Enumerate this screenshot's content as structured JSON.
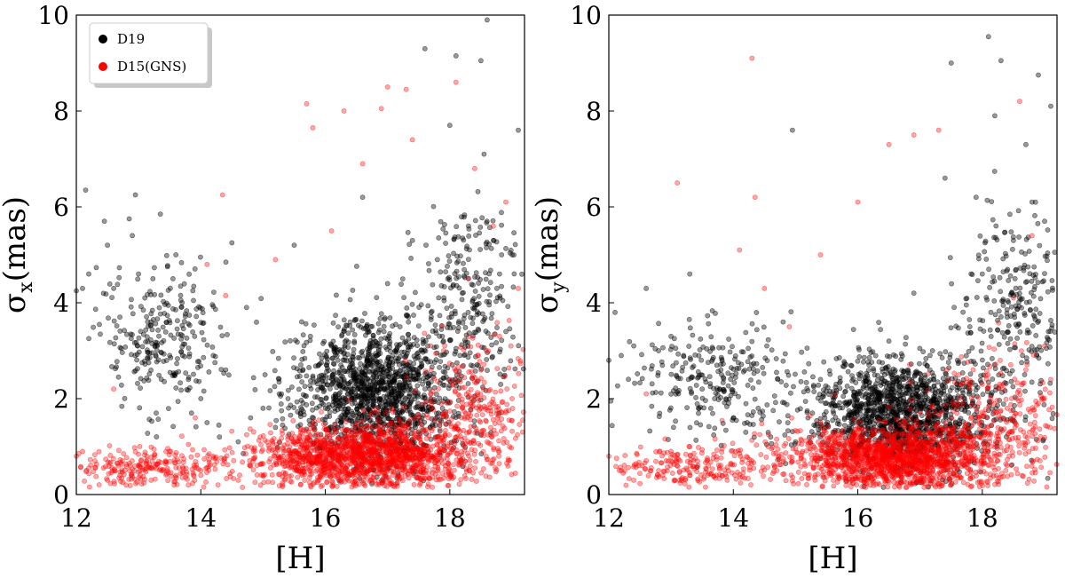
{
  "chart_data": [
    {
      "type": "scatter",
      "title": "",
      "xlabel": "[H]",
      "ylabel_symbol": "σ",
      "ylabel_sub": "x",
      "ylabel_unit": "(mas)",
      "xlim": [
        12,
        19.2
      ],
      "ylim": [
        0,
        10
      ],
      "xticks": [
        12,
        14,
        16,
        18
      ],
      "yticks": [
        0,
        2,
        4,
        6,
        8,
        10
      ],
      "grid": false,
      "legend": {
        "placement": "top-left",
        "entries": [
          "D19",
          "D15(GNS)"
        ]
      },
      "series": [
        {
          "name": "D19",
          "color": "#000000",
          "samples": [
            [
              12.0,
              4.25
            ],
            [
              12.1,
              4.3
            ],
            [
              12.15,
              6.35
            ],
            [
              12.2,
              4.6
            ],
            [
              12.45,
              5.7
            ],
            [
              12.5,
              5.2
            ],
            [
              12.6,
              4.3
            ],
            [
              12.7,
              3.7
            ],
            [
              12.85,
              5.75
            ],
            [
              12.9,
              5.4
            ],
            [
              12.95,
              6.25
            ],
            [
              13.0,
              4.6
            ],
            [
              13.1,
              4.1
            ],
            [
              13.2,
              3.6
            ],
            [
              13.3,
              3.1
            ],
            [
              13.35,
              5.85
            ],
            [
              13.5,
              2.9
            ],
            [
              13.6,
              5.0
            ],
            [
              13.7,
              4.0
            ],
            [
              13.8,
              2.4
            ],
            [
              13.85,
              1.7
            ],
            [
              13.9,
              3.3
            ],
            [
              14.0,
              2.0
            ],
            [
              14.1,
              1.5
            ],
            [
              14.2,
              2.9
            ],
            [
              14.3,
              1.2
            ],
            [
              14.4,
              2.6
            ],
            [
              14.5,
              5.25
            ],
            [
              14.6,
              1.1
            ],
            [
              14.8,
              1.6
            ],
            [
              15.0,
              1.8
            ],
            [
              15.2,
              1.4
            ],
            [
              15.4,
              2.0
            ],
            [
              15.5,
              5.2
            ],
            [
              15.6,
              1.7
            ],
            [
              15.8,
              1.5
            ],
            [
              15.9,
              2.4
            ],
            [
              16.0,
              1.8
            ],
            [
              16.1,
              1.3
            ],
            [
              16.2,
              2.8
            ],
            [
              16.3,
              1.9
            ],
            [
              16.4,
              3.6
            ],
            [
              16.5,
              2.3
            ],
            [
              16.6,
              6.2
            ],
            [
              16.7,
              2.0
            ],
            [
              16.8,
              3.1
            ],
            [
              16.9,
              2.6
            ],
            [
              17.0,
              4.4
            ],
            [
              17.1,
              2.2
            ],
            [
              17.2,
              3.5
            ],
            [
              17.3,
              2.9
            ],
            [
              17.4,
              5.3
            ],
            [
              17.5,
              2.5
            ],
            [
              17.6,
              9.3
            ],
            [
              17.7,
              3.8
            ],
            [
              17.8,
              4.9
            ],
            [
              17.9,
              3.2
            ],
            [
              18.0,
              7.7
            ],
            [
              18.1,
              9.15
            ],
            [
              18.2,
              4.2
            ],
            [
              18.3,
              5.6
            ],
            [
              18.4,
              3.9
            ],
            [
              18.5,
              9.05
            ],
            [
              18.55,
              7.1
            ],
            [
              18.6,
              9.9
            ],
            [
              18.7,
              5.3
            ],
            [
              18.8,
              4.6
            ],
            [
              18.9,
              3.4
            ],
            [
              19.0,
              5.0
            ],
            [
              19.1,
              7.6
            ]
          ]
        },
        {
          "name": "D15(GNS)",
          "color": "#ff0000",
          "samples": [
            [
              12.0,
              0.8
            ],
            [
              12.1,
              0.9
            ],
            [
              12.2,
              0.55
            ],
            [
              12.3,
              0.7
            ],
            [
              12.5,
              0.3
            ],
            [
              12.6,
              2.2
            ],
            [
              12.7,
              0.4
            ],
            [
              12.8,
              0.2
            ],
            [
              13.0,
              0.6
            ],
            [
              13.2,
              0.3
            ],
            [
              13.4,
              0.5
            ],
            [
              13.6,
              0.4
            ],
            [
              13.8,
              0.2
            ],
            [
              14.0,
              0.5
            ],
            [
              14.1,
              4.8
            ],
            [
              14.35,
              6.25
            ],
            [
              14.4,
              4.15
            ],
            [
              14.6,
              0.3
            ],
            [
              14.8,
              0.6
            ],
            [
              15.0,
              0.4
            ],
            [
              15.2,
              4.9
            ],
            [
              15.4,
              0.8
            ],
            [
              15.6,
              0.5
            ],
            [
              15.7,
              8.15
            ],
            [
              15.8,
              7.65
            ],
            [
              15.9,
              0.3
            ],
            [
              16.0,
              0.7
            ],
            [
              16.1,
              5.5
            ],
            [
              16.2,
              0.4
            ],
            [
              16.3,
              8.0
            ],
            [
              16.4,
              0.9
            ],
            [
              16.5,
              0.6
            ],
            [
              16.6,
              6.9
            ],
            [
              16.7,
              1.1
            ],
            [
              16.8,
              0.5
            ],
            [
              16.9,
              8.05
            ],
            [
              17.0,
              8.5
            ],
            [
              17.1,
              1.3
            ],
            [
              17.2,
              0.8
            ],
            [
              17.3,
              8.45
            ],
            [
              17.4,
              7.4
            ],
            [
              17.5,
              1.6
            ],
            [
              17.6,
              0.9
            ],
            [
              17.7,
              2.1
            ],
            [
              17.8,
              1.2
            ],
            [
              17.9,
              3.0
            ],
            [
              18.0,
              2.4
            ],
            [
              18.1,
              8.6
            ],
            [
              18.2,
              1.8
            ],
            [
              18.3,
              4.5
            ],
            [
              18.4,
              6.8
            ],
            [
              18.5,
              2.6
            ],
            [
              18.6,
              1.1
            ],
            [
              18.7,
              5.6
            ],
            [
              18.8,
              3.3
            ],
            [
              18.9,
              6.1
            ],
            [
              19.0,
              2.0
            ],
            [
              19.1,
              4.3
            ]
          ]
        }
      ]
    },
    {
      "type": "scatter",
      "title": "",
      "xlabel": "[H]",
      "ylabel_symbol": "σ",
      "ylabel_sub": "y",
      "ylabel_unit": "(mas)",
      "xlim": [
        12,
        19.2
      ],
      "ylim": [
        0,
        10
      ],
      "xticks": [
        12,
        14,
        16,
        18
      ],
      "yticks": [
        0,
        2,
        4,
        6,
        8,
        10
      ],
      "grid": false,
      "series": [
        {
          "name": "D19",
          "color": "#000000",
          "samples": [
            [
              12.0,
              2.8
            ],
            [
              12.1,
              3.8
            ],
            [
              12.2,
              2.9
            ],
            [
              12.4,
              3.1
            ],
            [
              12.6,
              4.3
            ],
            [
              12.8,
              3.0
            ],
            [
              13.0,
              3.3
            ],
            [
              13.2,
              2.9
            ],
            [
              13.3,
              4.6
            ],
            [
              13.5,
              2.2
            ],
            [
              13.7,
              2.0
            ],
            [
              13.8,
              2.6
            ],
            [
              14.0,
              1.6
            ],
            [
              14.2,
              1.3
            ],
            [
              14.4,
              1.8
            ],
            [
              14.6,
              1.2
            ],
            [
              14.8,
              3.6
            ],
            [
              14.95,
              7.6
            ],
            [
              15.0,
              1.1
            ],
            [
              15.2,
              1.6
            ],
            [
              15.4,
              2.4
            ],
            [
              15.6,
              1.3
            ],
            [
              15.8,
              1.9
            ],
            [
              16.0,
              1.5
            ],
            [
              16.2,
              2.2
            ],
            [
              16.4,
              1.7
            ],
            [
              16.5,
              3.2
            ],
            [
              16.6,
              2.0
            ],
            [
              16.8,
              2.6
            ],
            [
              16.9,
              4.2
            ],
            [
              17.0,
              1.9
            ],
            [
              17.2,
              3.0
            ],
            [
              17.4,
              6.6
            ],
            [
              17.5,
              9.0
            ],
            [
              17.6,
              2.8
            ],
            [
              17.8,
              3.5
            ],
            [
              17.9,
              6.2
            ],
            [
              18.0,
              4.6
            ],
            [
              18.1,
              9.55
            ],
            [
              18.2,
              7.9
            ],
            [
              18.3,
              9.05
            ],
            [
              18.4,
              3.7
            ],
            [
              18.5,
              5.3
            ],
            [
              18.6,
              4.1
            ],
            [
              18.7,
              7.3
            ],
            [
              18.8,
              6.1
            ],
            [
              18.9,
              8.75
            ],
            [
              19.0,
              5.7
            ],
            [
              19.1,
              8.1
            ]
          ]
        },
        {
          "name": "D15(GNS)",
          "color": "#ff0000",
          "samples": [
            [
              12.0,
              0.8
            ],
            [
              12.2,
              0.5
            ],
            [
              12.4,
              0.3
            ],
            [
              12.6,
              2.1
            ],
            [
              12.8,
              0.5
            ],
            [
              13.0,
              0.9
            ],
            [
              13.1,
              6.5
            ],
            [
              13.3,
              0.4
            ],
            [
              13.6,
              0.6
            ],
            [
              13.9,
              0.3
            ],
            [
              14.1,
              5.1
            ],
            [
              14.3,
              9.1
            ],
            [
              14.35,
              6.2
            ],
            [
              14.5,
              4.3
            ],
            [
              14.7,
              0.5
            ],
            [
              14.9,
              3.5
            ],
            [
              15.2,
              0.4
            ],
            [
              15.4,
              5.0
            ],
            [
              15.6,
              0.9
            ],
            [
              15.8,
              0.6
            ],
            [
              16.0,
              6.1
            ],
            [
              16.2,
              1.0
            ],
            [
              16.4,
              0.4
            ],
            [
              16.5,
              7.3
            ],
            [
              16.6,
              1.3
            ],
            [
              16.8,
              0.7
            ],
            [
              16.9,
              7.5
            ],
            [
              17.0,
              1.7
            ],
            [
              17.2,
              1.1
            ],
            [
              17.3,
              7.6
            ],
            [
              17.4,
              0.6
            ],
            [
              17.6,
              1.9
            ],
            [
              17.8,
              1.2
            ],
            [
              18.0,
              2.3
            ],
            [
              18.2,
              0.8
            ],
            [
              18.4,
              1.8
            ],
            [
              18.5,
              4.1
            ],
            [
              18.6,
              8.2
            ],
            [
              18.7,
              2.6
            ],
            [
              18.8,
              5.4
            ],
            [
              18.9,
              1.9
            ],
            [
              19.0,
              3.1
            ],
            [
              19.1,
              2.4
            ]
          ]
        }
      ]
    }
  ]
}
